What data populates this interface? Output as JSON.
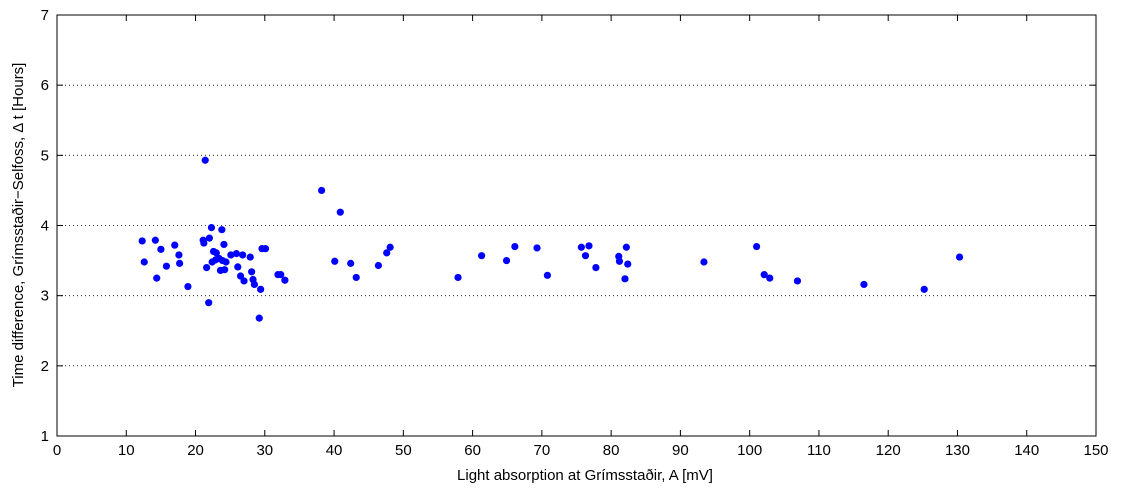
{
  "chart_data": {
    "type": "scatter",
    "xlabel": "Light absorption at Grímsstaðir, A [mV]",
    "ylabel": "Time difference, Grímsstaðir−Selfoss, Δ t [Hours]",
    "xlim": [
      0,
      150
    ],
    "ylim": [
      1,
      7
    ],
    "x_ticks": [
      0,
      10,
      20,
      30,
      40,
      50,
      60,
      70,
      80,
      90,
      100,
      110,
      120,
      130,
      140,
      150
    ],
    "y_ticks": [
      1,
      2,
      3,
      4,
      5,
      6,
      7
    ],
    "grid": "horizontal dotted",
    "marker_color": "#0000ff",
    "series": [
      {
        "points": [
          [
            12.3,
            3.78
          ],
          [
            12.6,
            3.48
          ],
          [
            14.2,
            3.79
          ],
          [
            14.4,
            3.25
          ],
          [
            15.0,
            3.66
          ],
          [
            15.8,
            3.42
          ],
          [
            17.0,
            3.72
          ],
          [
            17.6,
            3.58
          ],
          [
            17.7,
            3.46
          ],
          [
            18.9,
            3.13
          ],
          [
            21.1,
            3.79
          ],
          [
            21.2,
            3.75
          ],
          [
            21.4,
            4.93
          ],
          [
            21.6,
            3.4
          ],
          [
            21.9,
            2.9
          ],
          [
            22.0,
            3.82
          ],
          [
            22.3,
            3.97
          ],
          [
            22.4,
            3.48
          ],
          [
            22.6,
            3.63
          ],
          [
            22.9,
            3.51
          ],
          [
            23.0,
            3.61
          ],
          [
            23.4,
            3.53
          ],
          [
            23.6,
            3.36
          ],
          [
            23.8,
            3.94
          ],
          [
            23.9,
            3.5
          ],
          [
            24.1,
            3.73
          ],
          [
            24.2,
            3.37
          ],
          [
            24.4,
            3.48
          ],
          [
            25.1,
            3.58
          ],
          [
            25.9,
            3.6
          ],
          [
            26.1,
            3.41
          ],
          [
            26.5,
            3.28
          ],
          [
            26.8,
            3.58
          ],
          [
            27.0,
            3.21
          ],
          [
            27.9,
            3.55
          ],
          [
            28.1,
            3.34
          ],
          [
            28.3,
            3.23
          ],
          [
            28.5,
            3.16
          ],
          [
            29.2,
            2.68
          ],
          [
            29.4,
            3.09
          ],
          [
            29.6,
            3.67
          ],
          [
            30.1,
            3.67
          ],
          [
            31.9,
            3.3
          ],
          [
            32.3,
            3.3
          ],
          [
            32.9,
            3.22
          ],
          [
            38.2,
            4.5
          ],
          [
            40.1,
            3.49
          ],
          [
            40.9,
            4.19
          ],
          [
            42.4,
            3.46
          ],
          [
            43.2,
            3.26
          ],
          [
            46.4,
            3.43
          ],
          [
            47.6,
            3.61
          ],
          [
            48.1,
            3.69
          ],
          [
            57.9,
            3.26
          ],
          [
            61.3,
            3.57
          ],
          [
            64.9,
            3.5
          ],
          [
            66.1,
            3.7
          ],
          [
            69.3,
            3.68
          ],
          [
            70.8,
            3.29
          ],
          [
            75.7,
            3.69
          ],
          [
            76.3,
            3.57
          ],
          [
            76.8,
            3.71
          ],
          [
            77.8,
            3.4
          ],
          [
            81.1,
            3.56
          ],
          [
            81.2,
            3.49
          ],
          [
            82.0,
            3.24
          ],
          [
            82.2,
            3.69
          ],
          [
            82.4,
            3.45
          ],
          [
            93.4,
            3.48
          ],
          [
            101.0,
            3.7
          ],
          [
            102.1,
            3.3
          ],
          [
            102.9,
            3.25
          ],
          [
            106.9,
            3.21
          ],
          [
            116.5,
            3.16
          ],
          [
            125.2,
            3.09
          ],
          [
            130.3,
            3.55
          ]
        ]
      }
    ]
  }
}
